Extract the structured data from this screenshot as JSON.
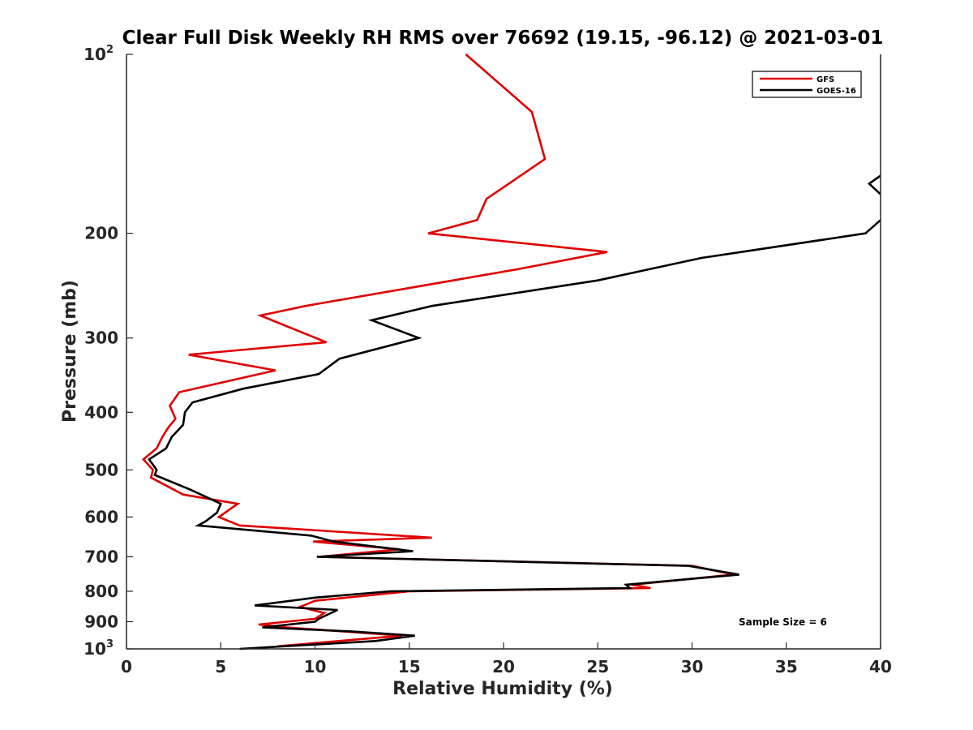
{
  "chart_data": {
    "type": "line",
    "title": "Clear Full Disk Weekly RH RMS over 76692 (19.15, -96.12) @ 2021-03-01",
    "xlabel": "Relative Humidity (%)",
    "ylabel": "Pressure (mb)",
    "xlim": [
      0,
      40
    ],
    "ylim": [
      100,
      1000
    ],
    "yscale": "log",
    "yreversed": true,
    "x_ticks": [
      "0",
      "5",
      "10",
      "15",
      "20",
      "25",
      "30",
      "35",
      "40"
    ],
    "y_ticks": [
      {
        "value": 100,
        "label": "10",
        "exp": "2"
      },
      {
        "value": 200,
        "label": "200"
      },
      {
        "value": 300,
        "label": "300"
      },
      {
        "value": 400,
        "label": "400"
      },
      {
        "value": 500,
        "label": "500"
      },
      {
        "value": 600,
        "label": "600"
      },
      {
        "value": 700,
        "label": "700"
      },
      {
        "value": 800,
        "label": "800"
      },
      {
        "value": 900,
        "label": "900"
      },
      {
        "value": 1000,
        "label": "10",
        "exp": "3"
      }
    ],
    "legend": {
      "position": "top-right",
      "entries": [
        "GFS",
        "GOES-16"
      ]
    },
    "annotation": "Sample Size = 6",
    "series": [
      {
        "name": "GFS",
        "color": "#e00000",
        "points": [
          [
            18.0,
            100
          ],
          [
            21.5,
            125
          ],
          [
            22.2,
            150
          ],
          [
            19.1,
            175
          ],
          [
            18.6,
            190
          ],
          [
            16.0,
            200
          ],
          [
            25.5,
            215
          ],
          [
            20.7,
            230
          ],
          [
            9.5,
            265
          ],
          [
            7.1,
            275
          ],
          [
            10.6,
            305
          ],
          [
            3.3,
            320
          ],
          [
            7.9,
            340
          ],
          [
            2.8,
            370
          ],
          [
            2.3,
            390
          ],
          [
            2.6,
            410
          ],
          [
            2.2,
            425
          ],
          [
            1.9,
            440
          ],
          [
            1.6,
            460
          ],
          [
            0.9,
            480
          ],
          [
            1.4,
            500
          ],
          [
            1.3,
            515
          ],
          [
            3.0,
            550
          ],
          [
            5.9,
            570
          ],
          [
            4.9,
            600
          ],
          [
            6.0,
            620
          ],
          [
            16.2,
            650
          ],
          [
            9.9,
            660
          ],
          [
            14.5,
            680
          ],
          [
            10.2,
            700
          ],
          [
            30.0,
            725
          ],
          [
            32.2,
            750
          ],
          [
            26.8,
            780
          ],
          [
            27.8,
            790
          ],
          [
            15.0,
            800
          ],
          [
            10.0,
            830
          ],
          [
            9.2,
            850
          ],
          [
            10.5,
            870
          ],
          [
            10.0,
            890
          ],
          [
            7.0,
            910
          ],
          [
            8.5,
            920
          ],
          [
            14.6,
            950
          ],
          [
            8.0,
            990
          ]
        ]
      },
      {
        "name": "GOES-16",
        "color": "#000000",
        "points": [
          [
            40.0,
            190
          ],
          [
            39.2,
            200
          ],
          [
            30.5,
            220
          ],
          [
            25.0,
            240
          ],
          [
            16.2,
            265
          ],
          [
            13.0,
            280
          ],
          [
            15.5,
            300
          ],
          [
            11.3,
            325
          ],
          [
            10.2,
            345
          ],
          [
            6.2,
            365
          ],
          [
            3.5,
            385
          ],
          [
            3.1,
            400
          ],
          [
            3.0,
            420
          ],
          [
            2.4,
            440
          ],
          [
            2.1,
            460
          ],
          [
            1.2,
            480
          ],
          [
            1.6,
            500
          ],
          [
            1.5,
            510
          ],
          [
            3.4,
            540
          ],
          [
            5.0,
            570
          ],
          [
            4.8,
            590
          ],
          [
            4.2,
            610
          ],
          [
            3.8,
            620
          ],
          [
            9.8,
            645
          ],
          [
            11.0,
            660
          ],
          [
            15.2,
            685
          ],
          [
            10.1,
            700
          ],
          [
            29.8,
            725
          ],
          [
            32.5,
            750
          ],
          [
            26.5,
            780
          ],
          [
            26.7,
            790
          ],
          [
            14.0,
            800
          ],
          [
            10.0,
            820
          ],
          [
            6.8,
            845
          ],
          [
            11.2,
            860
          ],
          [
            10.2,
            890
          ],
          [
            10.0,
            900
          ],
          [
            7.2,
            920
          ],
          [
            12.0,
            935
          ],
          [
            15.3,
            950
          ],
          [
            13.2,
            970
          ],
          [
            6.0,
            1000
          ]
        ]
      },
      {
        "name": "GOES-16 (offscale marker)",
        "color": "#000000",
        "points": [
          [
            40.0,
            160
          ],
          [
            39.4,
            165
          ],
          [
            40.0,
            172
          ]
        ]
      }
    ]
  }
}
